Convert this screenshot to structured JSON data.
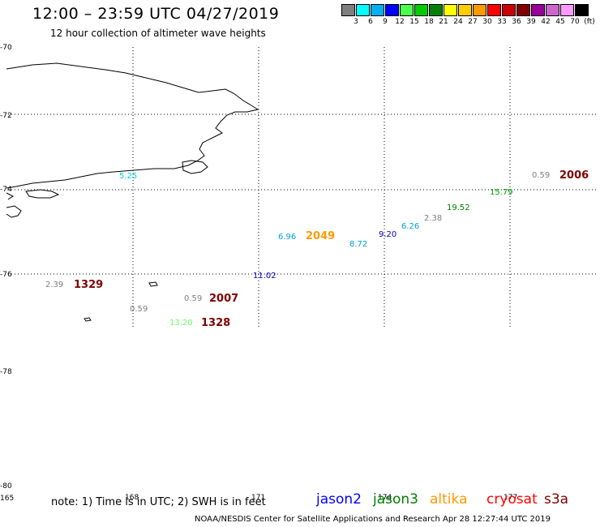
{
  "title": "12:00 – 23:59 UTC 04/27/2019",
  "subtitle": "12 hour collection of altimeter wave heights",
  "legend": {
    "colors": [
      "#7f7f7f",
      "#00ffff",
      "#00b0f0",
      "#0000ff",
      "#4cff4c",
      "#00cc00",
      "#008000",
      "#ffff00",
      "#ffcc00",
      "#ff9900",
      "#ff0000",
      "#cc0000",
      "#800000",
      "#990099",
      "#cc66cc",
      "#ff99ff",
      "#000000"
    ],
    "labels": [
      "3",
      "6",
      "9",
      "12",
      "15",
      "18",
      "21",
      "24",
      "27",
      "30",
      "33",
      "36",
      "39",
      "42",
      "45",
      "70",
      "(ft)"
    ]
  },
  "axes": {
    "lat_labels": [
      "-70",
      "-72",
      "-74",
      "-76",
      "-78",
      "-80"
    ],
    "lon_labels": [
      "165",
      "168",
      "171",
      "174",
      "177"
    ]
  },
  "observations": [
    {
      "text": "5.25",
      "color": "#00cccc"
    },
    {
      "text": "0.59",
      "color": "#7f7f7f"
    },
    {
      "text": "2006",
      "color": "#800000"
    },
    {
      "text": "15.79",
      "color": "#00a000"
    },
    {
      "text": "19.52",
      "color": "#008000"
    },
    {
      "text": "2.38",
      "color": "#7f7f7f"
    },
    {
      "text": "6.26",
      "color": "#00a0e0"
    },
    {
      "text": "9.20",
      "color": "#0000c0"
    },
    {
      "text": "8.72",
      "color": "#00a0e0"
    },
    {
      "text": "6.96",
      "color": "#00a0e0"
    },
    {
      "text": "2049",
      "color": "#ff9900"
    },
    {
      "text": "11.02",
      "color": "#0000c0"
    },
    {
      "text": "2.39",
      "color": "#7f7f7f"
    },
    {
      "text": "1329",
      "color": "#800000"
    },
    {
      "text": "0.59",
      "color": "#7f7f7f"
    },
    {
      "text": "2007",
      "color": "#800000"
    },
    {
      "text": "0.59",
      "color": "#7f7f7f"
    },
    {
      "text": "13.20",
      "color": "#66ff66"
    },
    {
      "text": "1328",
      "color": "#800000"
    }
  ],
  "note": "note:  1) Time is in UTC;  2) SWH is in feet",
  "satellites": [
    {
      "name": "jason2",
      "color": "#0000ff"
    },
    {
      "name": "jason3",
      "color": "#008000"
    },
    {
      "name": "altika",
      "color": "#ff9900"
    },
    {
      "name": "cryosat",
      "color": "#ff0000"
    },
    {
      "name": "s3a",
      "color": "#800000"
    }
  ],
  "credit": "NOAA/NESDIS Center for Satellite Applications and Research    Apr 28 12:27:44 UTC 2019"
}
